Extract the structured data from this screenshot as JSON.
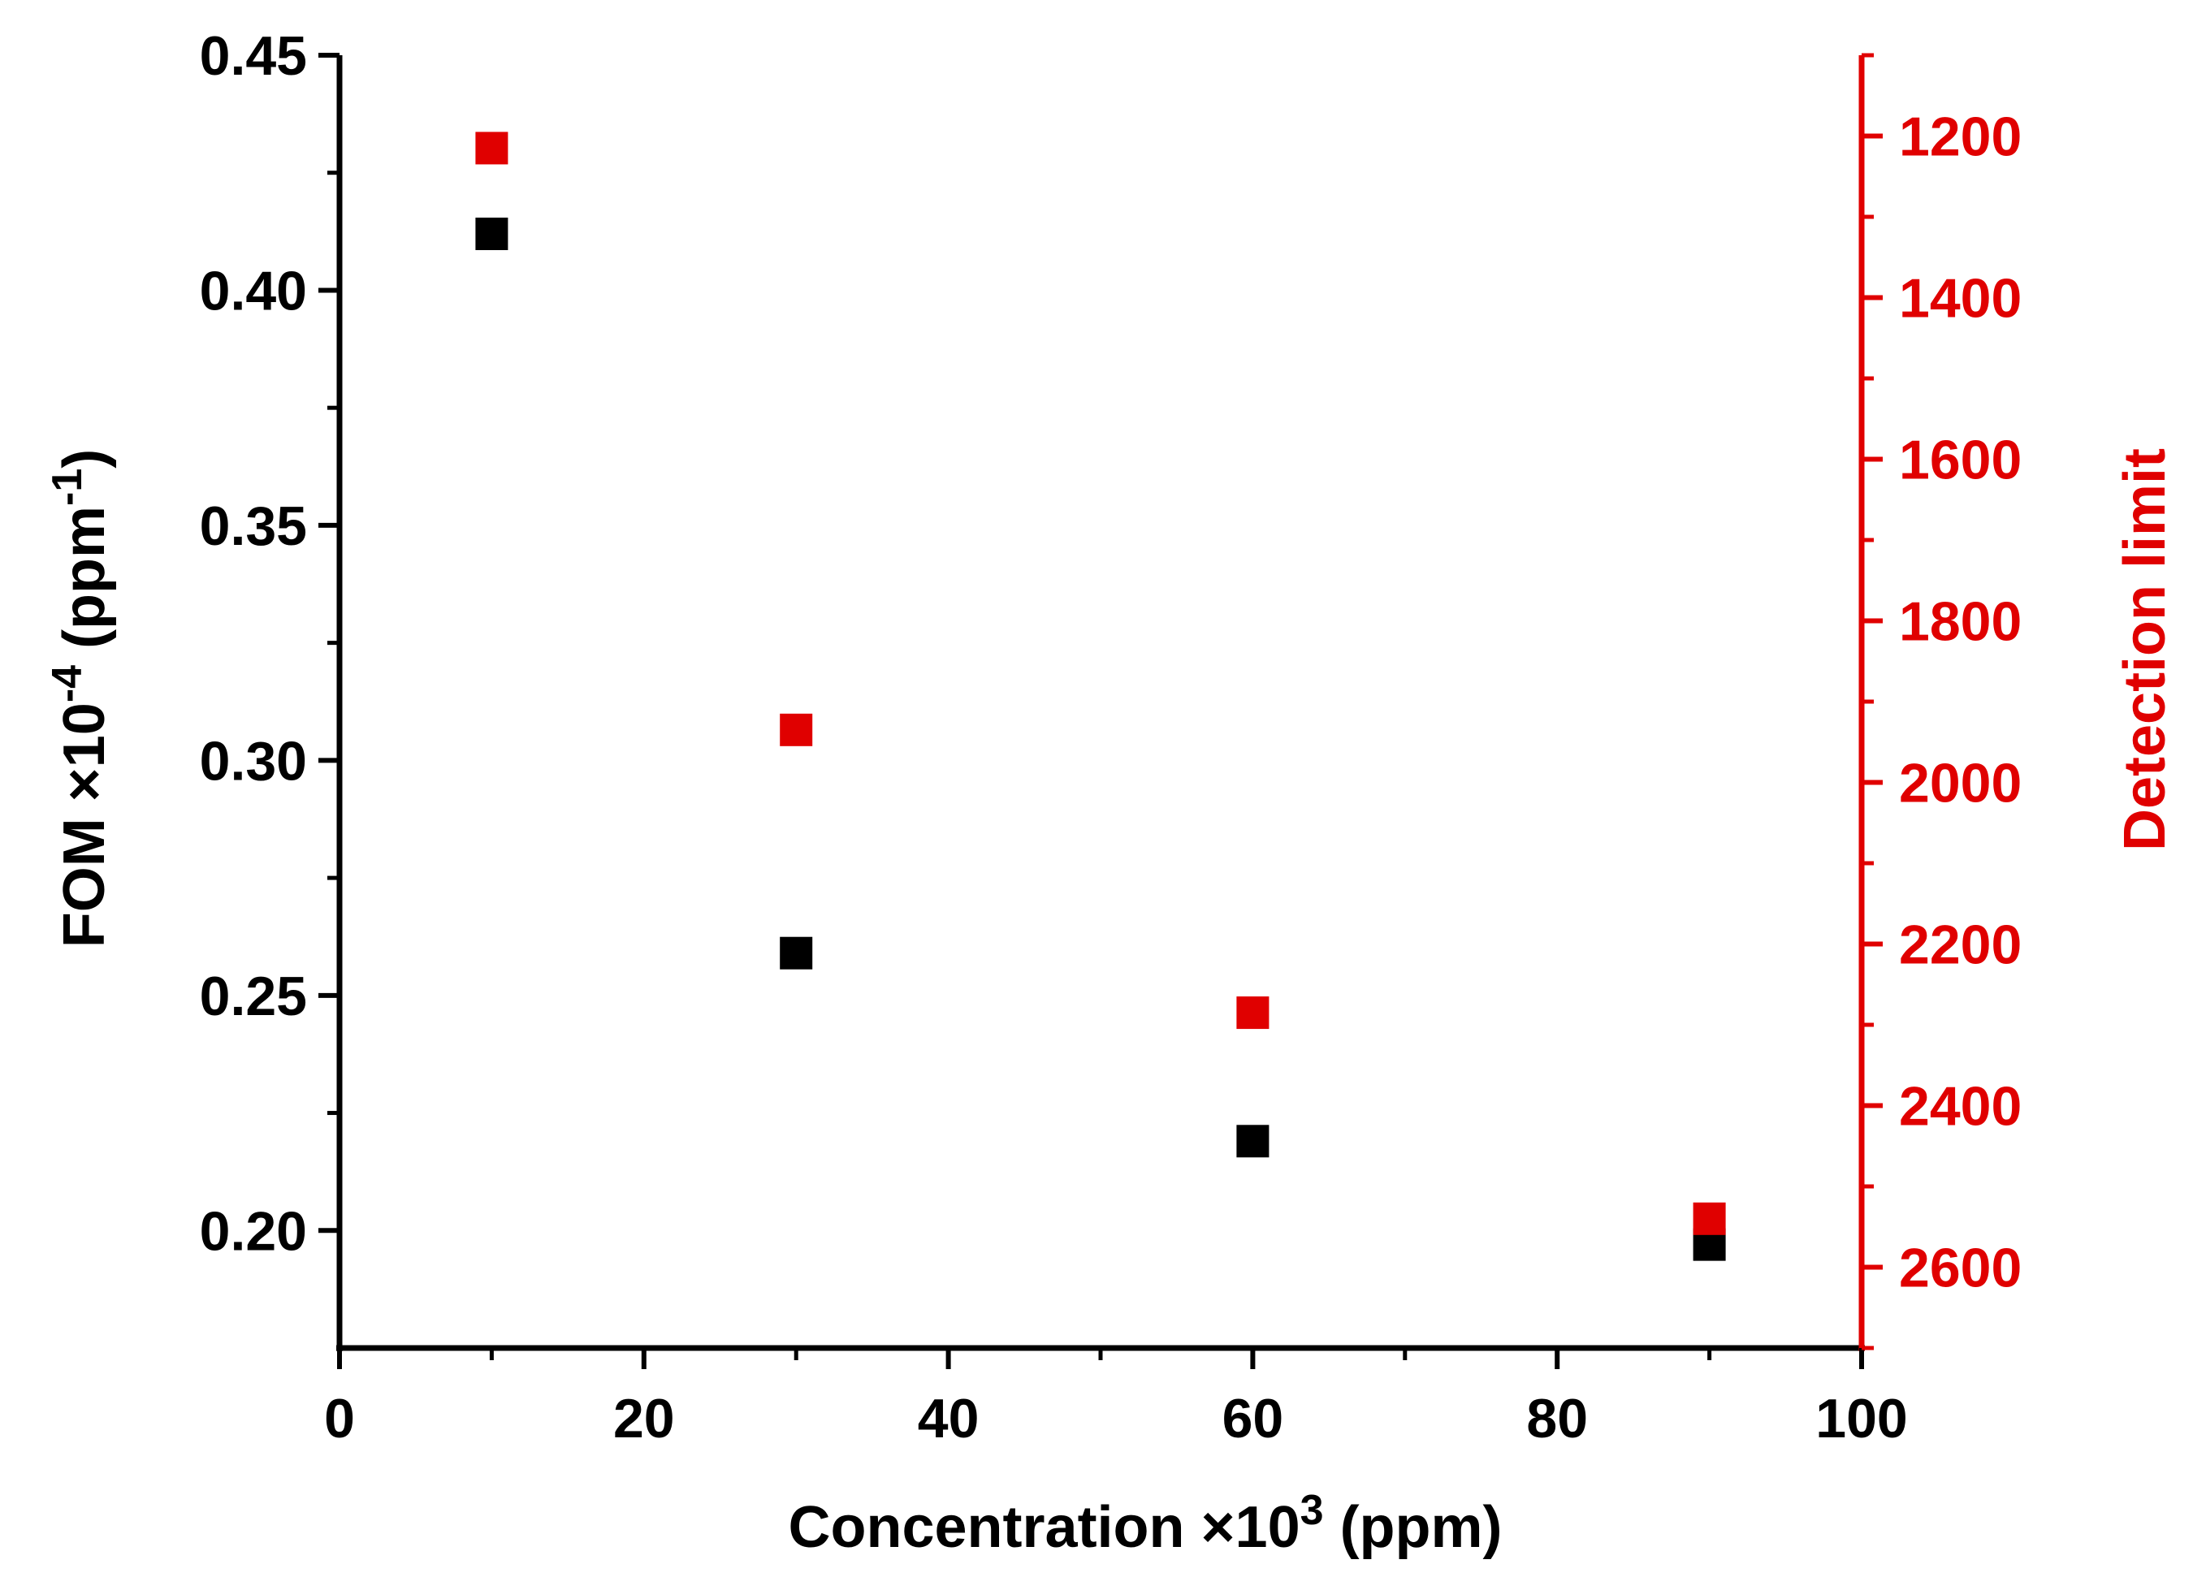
{
  "chart_data": {
    "type": "scatter",
    "title": "",
    "x_axis": {
      "label_main": "Concentration ×10",
      "label_sup": "3",
      "label_unit": " (ppm)",
      "range": [
        0,
        100
      ],
      "ticks": [
        0,
        20,
        40,
        60,
        80,
        100
      ],
      "tick_labels": [
        "0",
        "20",
        "40",
        "60",
        "80",
        "100"
      ],
      "minor_ticks": [
        10,
        30,
        50,
        70,
        90
      ]
    },
    "y_left": {
      "label_main": "FOM ×10",
      "label_sup": "-4",
      "label_unit": " (ppm",
      "label_unit_sup": "-1",
      "label_close": ")",
      "range": [
        0.175,
        0.45
      ],
      "ticks": [
        0.2,
        0.25,
        0.3,
        0.35,
        0.4,
        0.45
      ],
      "tick_labels": [
        "0.20",
        "0.25",
        "0.30",
        "0.35",
        "0.40",
        "0.45"
      ],
      "minor_ticks": [
        0.225,
        0.275,
        0.325,
        0.375,
        0.425
      ],
      "color": "#000000"
    },
    "y_right": {
      "label": "Detection limit",
      "inverted": true,
      "range": [
        1100,
        2700
      ],
      "ticks": [
        1200,
        1400,
        1600,
        1800,
        2000,
        2200,
        2400,
        2600
      ],
      "tick_labels": [
        "1200",
        "1400",
        "1600",
        "1800",
        "2000",
        "2200",
        "2400",
        "2600"
      ],
      "minor_ticks": [
        1100,
        1300,
        1500,
        1700,
        1900,
        2100,
        2300,
        2500,
        2700
      ],
      "color": "#e00000"
    },
    "series": [
      {
        "name": "FOM",
        "axis": "left",
        "color": "#000000",
        "x": [
          10,
          30,
          60,
          90
        ],
        "y": [
          0.412,
          0.259,
          0.219,
          0.197
        ]
      },
      {
        "name": "Detection limit",
        "axis": "right",
        "color": "#e00000",
        "x": [
          10,
          30,
          60,
          90
        ],
        "y": [
          1215,
          1935,
          2285,
          2540
        ]
      }
    ]
  }
}
